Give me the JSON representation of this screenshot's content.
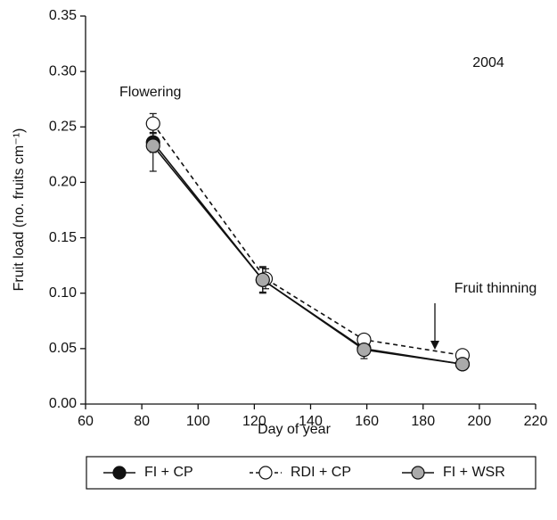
{
  "chart_data": {
    "type": "line",
    "x_label": "Day of year",
    "y_label": "Fruit load (no. fruits cm⁻¹)",
    "annotations": [
      "2004",
      "Flowering",
      "Fruit thinning"
    ],
    "xlim": [
      60,
      220
    ],
    "xticks": [
      60,
      80,
      100,
      120,
      140,
      160,
      180,
      200,
      220
    ],
    "ylim": [
      0,
      0.35
    ],
    "yticks": [
      {
        "value": 0,
        "label": "0.00"
      },
      {
        "value": 0.05,
        "label": "0.05"
      },
      {
        "value": 0.1,
        "label": "0.10"
      },
      {
        "value": 0.15,
        "label": "0.15"
      },
      {
        "value": 0.2,
        "label": "0.20"
      },
      {
        "value": 0.25,
        "label": "0.25"
      },
      {
        "value": 0.3,
        "label": "0.30"
      },
      {
        "value": 0.35,
        "label": "0.35"
      }
    ],
    "legend": "bottom",
    "series": [
      {
        "name": "FI + CP",
        "color": "#111111",
        "line_dash": false,
        "x": [
          84,
          123,
          159,
          194
        ],
        "values": [
          0.236,
          0.112,
          0.05,
          0.036
        ],
        "errors": [
          0.009,
          0.011,
          0.005,
          0.003
        ]
      },
      {
        "name": "RDI + CP",
        "color": "#ffffff",
        "line_dash": true,
        "x": [
          84,
          124,
          159,
          194
        ],
        "values": [
          0.253,
          0.113,
          0.058,
          0.044
        ],
        "errors": [
          0.009,
          0.009,
          0.004,
          0.003
        ]
      },
      {
        "name": "FI + WSR",
        "color": "#aaaaaa",
        "line_dash": false,
        "x": [
          84,
          123,
          159,
          194
        ],
        "values": [
          0.233,
          0.112,
          0.049,
          0.036
        ],
        "errors": [
          0.023,
          0.012,
          0.008,
          0.003
        ]
      }
    ]
  }
}
